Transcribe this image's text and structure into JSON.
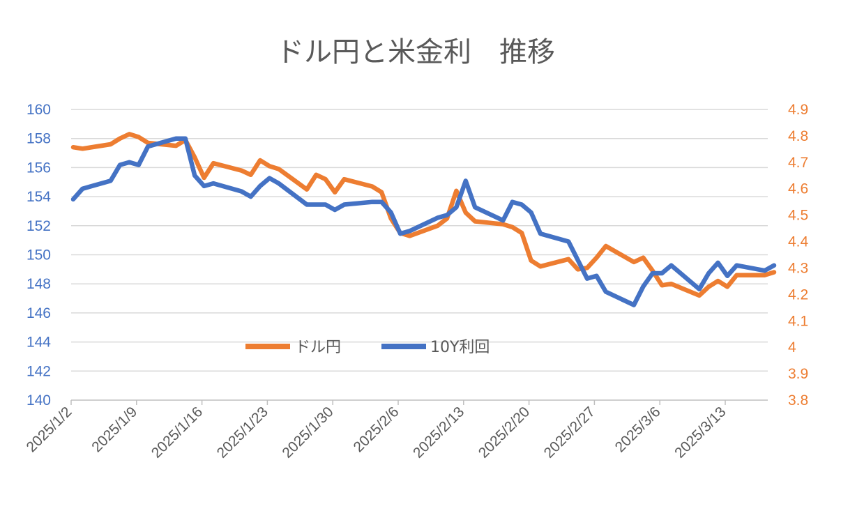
{
  "chart_data": {
    "type": "line",
    "title": "ドル円と米金利　推移",
    "y_left": {
      "min": 140,
      "max": 160,
      "step": 2,
      "ticks": [
        "140",
        "142",
        "144",
        "146",
        "148",
        "150",
        "152",
        "154",
        "156",
        "158",
        "160"
      ],
      "color": "#4472C4"
    },
    "y_right": {
      "min": 3.8,
      "max": 4.9,
      "step": 0.1,
      "ticks": [
        "3.8",
        "3.9",
        "4",
        "4.1",
        "4.2",
        "4.3",
        "4.4",
        "4.5",
        "4.6",
        "4.7",
        "4.8",
        "4.9"
      ],
      "color": "#ED7D31"
    },
    "x_labels": [
      "2025/1/2",
      "2025/1/9",
      "2025/1/16",
      "2025/1/23",
      "2025/1/30",
      "2025/2/6",
      "2025/2/13",
      "2025/2/20",
      "2025/2/27",
      "2025/3/6",
      "2025/3/13"
    ],
    "legend": {
      "placement": "bottom-center",
      "labels": [
        "ドル円",
        "10Y利回"
      ]
    },
    "grid": true,
    "series": [
      {
        "name": "ドル円",
        "axis": "left",
        "color": "#ED7D31",
        "points": [
          [
            "2025/1/2",
            157.4
          ],
          [
            "2025/1/3",
            157.3
          ],
          [
            "2025/1/6",
            157.6
          ],
          [
            "2025/1/7",
            158.0
          ],
          [
            "2025/1/8",
            158.3
          ],
          [
            "2025/1/9",
            158.1
          ],
          [
            "2025/1/10",
            157.7
          ],
          [
            "2025/1/13",
            157.5
          ],
          [
            "2025/1/14",
            157.9
          ],
          [
            "2025/1/15",
            156.7
          ],
          [
            "2025/1/16",
            155.3
          ],
          [
            "2025/1/17",
            156.3
          ],
          [
            "2025/1/20",
            155.8
          ],
          [
            "2025/1/21",
            155.5
          ],
          [
            "2025/1/22",
            156.5
          ],
          [
            "2025/1/23",
            156.1
          ],
          [
            "2025/1/24",
            155.9
          ],
          [
            "2025/1/27",
            154.5
          ],
          [
            "2025/1/28",
            155.5
          ],
          [
            "2025/1/29",
            155.2
          ],
          [
            "2025/1/30",
            154.3
          ],
          [
            "2025/1/31",
            155.2
          ],
          [
            "2025/2/3",
            154.7
          ],
          [
            "2025/2/4",
            154.3
          ],
          [
            "2025/2/5",
            152.5
          ],
          [
            "2025/2/6",
            151.5
          ],
          [
            "2025/2/7",
            151.3
          ],
          [
            "2025/2/10",
            152.0
          ],
          [
            "2025/2/11",
            152.5
          ],
          [
            "2025/2/12",
            154.4
          ],
          [
            "2025/2/13",
            152.9
          ],
          [
            "2025/2/14",
            152.3
          ],
          [
            "2025/2/17",
            152.1
          ],
          [
            "2025/2/18",
            151.9
          ],
          [
            "2025/2/19",
            151.5
          ],
          [
            "2025/2/20",
            149.6
          ],
          [
            "2025/2/21",
            149.2
          ],
          [
            "2025/2/24",
            149.7
          ],
          [
            "2025/2/25",
            149.0
          ],
          [
            "2025/2/26",
            149.1
          ],
          [
            "2025/2/27",
            149.8
          ],
          [
            "2025/2/28",
            150.6
          ],
          [
            "2025/3/3",
            149.5
          ],
          [
            "2025/3/4",
            149.8
          ],
          [
            "2025/3/5",
            148.9
          ],
          [
            "2025/3/6",
            147.9
          ],
          [
            "2025/3/7",
            148.0
          ],
          [
            "2025/3/10",
            147.2
          ],
          [
            "2025/3/11",
            147.8
          ],
          [
            "2025/3/12",
            148.2
          ],
          [
            "2025/3/13",
            147.8
          ],
          [
            "2025/3/14",
            148.6
          ],
          [
            "2025/3/17",
            148.6
          ],
          [
            "2025/3/18",
            148.8
          ]
        ]
      },
      {
        "name": "10Y利回",
        "axis": "right",
        "color": "#4472C4",
        "points": [
          [
            "2025/1/2",
            4.56
          ],
          [
            "2025/1/3",
            4.6
          ],
          [
            "2025/1/6",
            4.63
          ],
          [
            "2025/1/7",
            4.69
          ],
          [
            "2025/1/8",
            4.7
          ],
          [
            "2025/1/9",
            4.69
          ],
          [
            "2025/1/10",
            4.76
          ],
          [
            "2025/1/13",
            4.79
          ],
          [
            "2025/1/14",
            4.79
          ],
          [
            "2025/1/15",
            4.65
          ],
          [
            "2025/1/16",
            4.61
          ],
          [
            "2025/1/17",
            4.62
          ],
          [
            "2025/1/20",
            4.59
          ],
          [
            "2025/1/21",
            4.57
          ],
          [
            "2025/1/22",
            4.61
          ],
          [
            "2025/1/23",
            4.64
          ],
          [
            "2025/1/24",
            4.62
          ],
          [
            "2025/1/27",
            4.54
          ],
          [
            "2025/1/28",
            4.54
          ],
          [
            "2025/1/29",
            4.54
          ],
          [
            "2025/1/30",
            4.52
          ],
          [
            "2025/1/31",
            4.54
          ],
          [
            "2025/2/3",
            4.55
          ],
          [
            "2025/2/4",
            4.55
          ],
          [
            "2025/2/5",
            4.51
          ],
          [
            "2025/2/6",
            4.43
          ],
          [
            "2025/2/7",
            4.44
          ],
          [
            "2025/2/10",
            4.49
          ],
          [
            "2025/2/11",
            4.5
          ],
          [
            "2025/2/12",
            4.53
          ],
          [
            "2025/2/13",
            4.63
          ],
          [
            "2025/2/14",
            4.53
          ],
          [
            "2025/2/17",
            4.48
          ],
          [
            "2025/2/18",
            4.55
          ],
          [
            "2025/2/19",
            4.54
          ],
          [
            "2025/2/20",
            4.51
          ],
          [
            "2025/2/21",
            4.43
          ],
          [
            "2025/2/24",
            4.4
          ],
          [
            "2025/2/25",
            4.33
          ],
          [
            "2025/2/26",
            4.26
          ],
          [
            "2025/2/27",
            4.27
          ],
          [
            "2025/2/28",
            4.21
          ],
          [
            "2025/3/3",
            4.16
          ],
          [
            "2025/3/4",
            4.23
          ],
          [
            "2025/3/5",
            4.28
          ],
          [
            "2025/3/6",
            4.28
          ],
          [
            "2025/3/7",
            4.31
          ],
          [
            "2025/3/10",
            4.22
          ],
          [
            "2025/3/11",
            4.28
          ],
          [
            "2025/3/12",
            4.32
          ],
          [
            "2025/3/13",
            4.27
          ],
          [
            "2025/3/14",
            4.31
          ],
          [
            "2025/3/17",
            4.29
          ],
          [
            "2025/3/18",
            4.31
          ]
        ]
      }
    ]
  }
}
